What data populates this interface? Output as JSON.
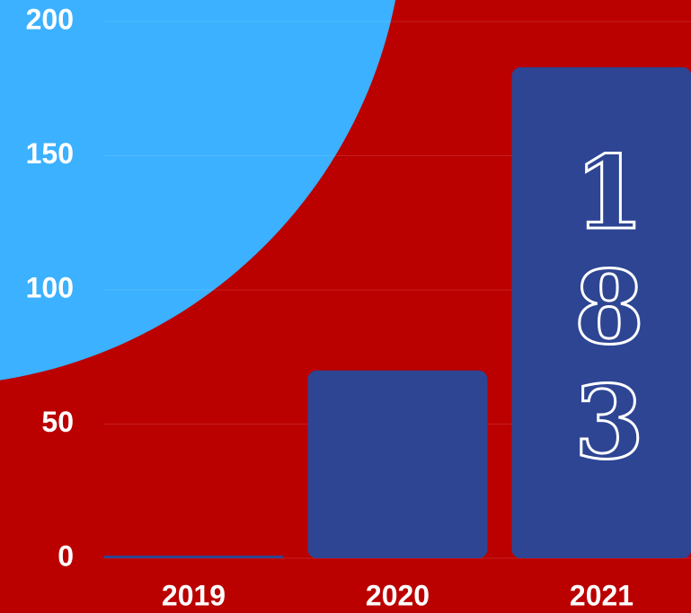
{
  "chart_data": {
    "type": "bar",
    "categories": [
      "2019",
      "2020",
      "2021"
    ],
    "values": [
      1,
      70,
      183
    ],
    "color": "#2e4593",
    "ylim": [
      0,
      200
    ],
    "yticks": [
      0,
      50,
      100,
      150,
      200
    ],
    "grid": true
  }
}
